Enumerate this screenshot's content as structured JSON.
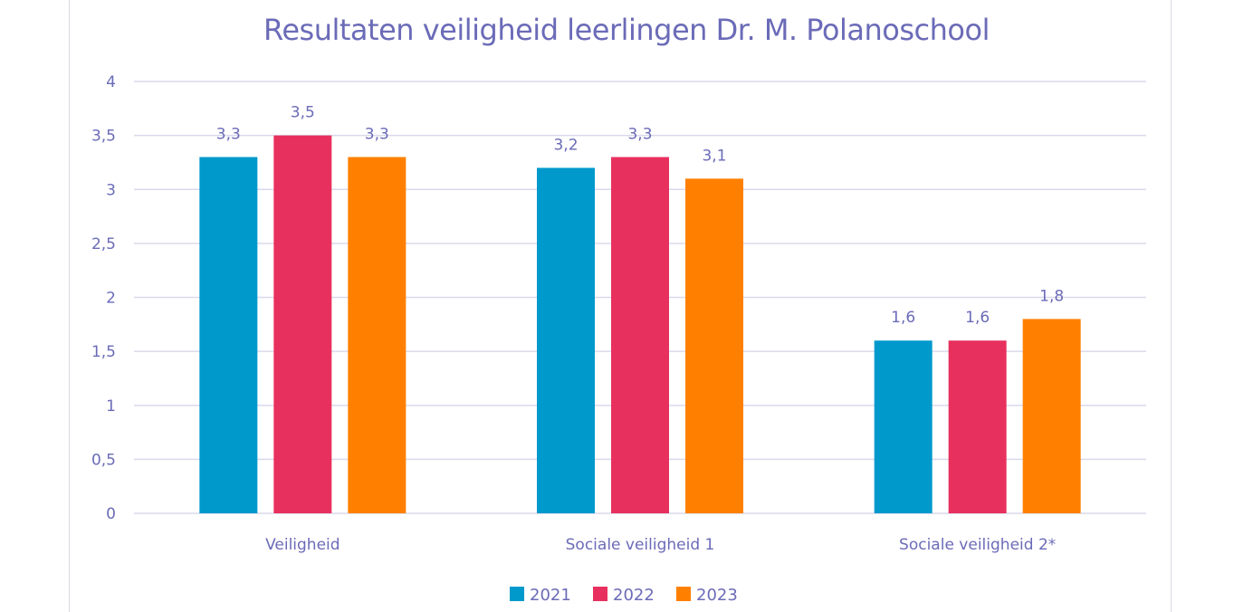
{
  "chart_data": {
    "type": "bar",
    "title": "Resultaten veiligheid leerlingen Dr. M. Polanoschool",
    "categories": [
      "Veiligheid",
      "Sociale veiligheid 1",
      "Sociale veiligheid 2*"
    ],
    "series": [
      {
        "name": "2021",
        "color": "#0099cc",
        "values": [
          3.3,
          3.2,
          1.6
        ]
      },
      {
        "name": "2022",
        "color": "#e8305e",
        "values": [
          3.5,
          3.3,
          1.6
        ]
      },
      {
        "name": "2023",
        "color": "#ff8000",
        "values": [
          3.3,
          3.1,
          1.8
        ]
      }
    ],
    "value_labels": [
      [
        "3,3",
        "3,2",
        "1,6"
      ],
      [
        "3,5",
        "3,3",
        "1,6"
      ],
      [
        "3,3",
        "3,1",
        "1,8"
      ]
    ],
    "ylim": [
      0,
      4
    ],
    "yticks": [
      0,
      0.5,
      1,
      1.5,
      2,
      2.5,
      3,
      3.5,
      4
    ],
    "ytick_labels": [
      "0",
      "0,5",
      "1",
      "1,5",
      "2",
      "2,5",
      "3",
      "3,5",
      "4"
    ],
    "grid": true,
    "legend_position": "bottom",
    "xlabel": "",
    "ylabel": ""
  }
}
